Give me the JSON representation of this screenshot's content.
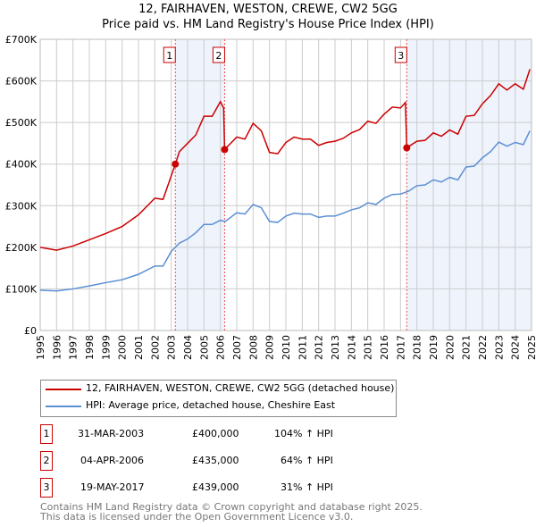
{
  "chart_data": {
    "type": "line",
    "title": "12, FAIRHAVEN, WESTON, CREWE, CW2 5GG",
    "subtitle": "Price paid vs. HM Land Registry's House Price Index (HPI)",
    "xlim": [
      1995,
      2025
    ],
    "ylim": [
      0,
      700000
    ],
    "yticks": [
      {
        "v": 0,
        "l": "£0"
      },
      {
        "v": 100000,
        "l": "£100K"
      },
      {
        "v": 200000,
        "l": "£200K"
      },
      {
        "v": 300000,
        "l": "£300K"
      },
      {
        "v": 400000,
        "l": "£400K"
      },
      {
        "v": 500000,
        "l": "£500K"
      },
      {
        "v": 600000,
        "l": "£600K"
      },
      {
        "v": 700000,
        "l": "£700K"
      }
    ],
    "xticks": [
      "1995",
      "1996",
      "1997",
      "1998",
      "1999",
      "2000",
      "2001",
      "2002",
      "2003",
      "2004",
      "2005",
      "2006",
      "2007",
      "2008",
      "2009",
      "2010",
      "2011",
      "2012",
      "2013",
      "2014",
      "2015",
      "2016",
      "2017",
      "2018",
      "2019",
      "2020",
      "2021",
      "2022",
      "2023",
      "2024",
      "2025"
    ],
    "series": [
      {
        "name": "12, FAIRHAVEN, WESTON, CREWE, CW2 5GG (detached house)",
        "color": "#cc0000",
        "x": [
          1995,
          1996,
          1997,
          1998,
          1999,
          2000,
          2001,
          2002,
          2002.5,
          2003.25,
          2003.5,
          2004,
          2004.5,
          2005,
          2005.5,
          2006,
          2006.2,
          2006.26,
          2007,
          2007.5,
          2008,
          2008.5,
          2009,
          2009.5,
          2010,
          2010.5,
          2011,
          2011.5,
          2012,
          2012.5,
          2013,
          2013.5,
          2014,
          2014.5,
          2015,
          2015.5,
          2016,
          2016.5,
          2017,
          2017.3,
          2017.38,
          2018,
          2018.5,
          2019,
          2019.5,
          2020,
          2020.5,
          2021,
          2021.5,
          2022,
          2022.5,
          2023,
          2023.5,
          2024,
          2024.5,
          2024.9
        ],
        "y": [
          200,
          193,
          203,
          218,
          233,
          250,
          278,
          318,
          315,
          400,
          430,
          450,
          470,
          515,
          515,
          550,
          535,
          435,
          465,
          460,
          498,
          480,
          428,
          425,
          452,
          465,
          460,
          460,
          445,
          452,
          455,
          462,
          475,
          483,
          503,
          498,
          520,
          537,
          535,
          548,
          439,
          455,
          457,
          475,
          467,
          482,
          472,
          515,
          517,
          545,
          565,
          593,
          578,
          593,
          580,
          628
        ]
      },
      {
        "name": "HPI: Average price, detached house, Cheshire East",
        "color": "#5b8fd4",
        "x": [
          1995,
          1996,
          1997,
          1998,
          1999,
          2000,
          2001,
          2002,
          2002.5,
          2003,
          2003.5,
          2004,
          2004.5,
          2005,
          2005.5,
          2006,
          2006.3,
          2007,
          2007.5,
          2008,
          2008.5,
          2009,
          2009.5,
          2010,
          2010.5,
          2011,
          2011.5,
          2012,
          2012.5,
          2013,
          2013.5,
          2014,
          2014.5,
          2015,
          2015.5,
          2016,
          2016.5,
          2017,
          2017.5,
          2018,
          2018.5,
          2019,
          2019.5,
          2020,
          2020.5,
          2021,
          2021.5,
          2022,
          2022.5,
          2023,
          2023.5,
          2024,
          2024.5,
          2024.9
        ],
        "y": [
          97,
          95,
          100,
          107,
          115,
          122,
          135,
          155,
          155,
          190,
          210,
          220,
          235,
          255,
          255,
          265,
          262,
          283,
          280,
          303,
          295,
          262,
          260,
          275,
          282,
          280,
          280,
          272,
          275,
          275,
          282,
          290,
          295,
          307,
          303,
          318,
          327,
          328,
          335,
          348,
          350,
          362,
          357,
          368,
          362,
          393,
          395,
          415,
          430,
          453,
          443,
          452,
          447,
          480
        ]
      }
    ],
    "y_unit": "thousands GBP",
    "sales": [
      {
        "n": "1",
        "x": 2003.25,
        "y": 400
      },
      {
        "n": "2",
        "x": 2006.26,
        "y": 435
      },
      {
        "n": "3",
        "x": 2017.38,
        "y": 439
      }
    ]
  },
  "legend": [
    "12, FAIRHAVEN, WESTON, CREWE, CW2 5GG (detached house)",
    "HPI: Average price, detached house, Cheshire East"
  ],
  "table": [
    {
      "n": "1",
      "date": "31-MAR-2003",
      "price": "£400,000",
      "hpi": "104% ↑ HPI"
    },
    {
      "n": "2",
      "date": "04-APR-2006",
      "price": "£435,000",
      "hpi": "64% ↑ HPI"
    },
    {
      "n": "3",
      "date": "19-MAY-2017",
      "price": "£439,000",
      "hpi": "31% ↑ HPI"
    }
  ],
  "footer": [
    "Contains HM Land Registry data © Crown copyright and database right 2025.",
    "This data is licensed under the Open Government Licence v3.0."
  ]
}
